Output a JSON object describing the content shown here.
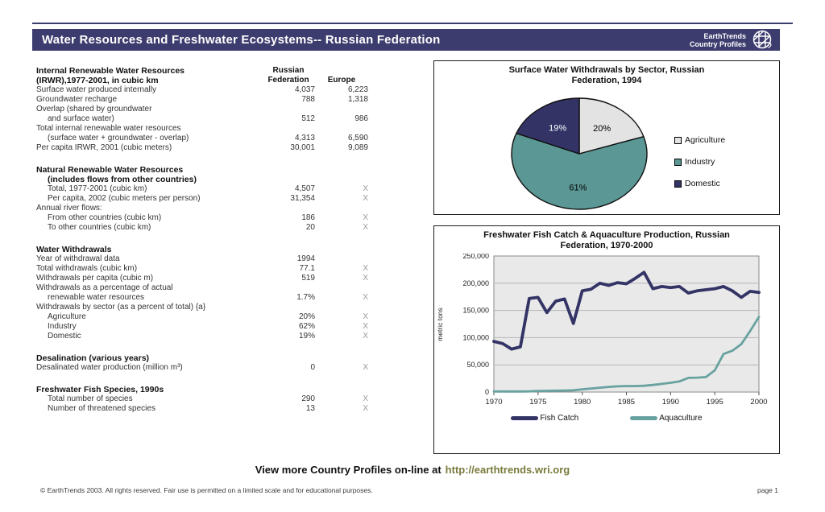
{
  "header": {
    "title": "Water Resources and Freshwater Ecosystems-- Russian Federation",
    "logo_line1": "EarthTrends",
    "logo_line2": "Country Profiles"
  },
  "table": {
    "columns": {
      "col1_line1": "Russian",
      "col1_line2": "Federation",
      "col2": "Europe"
    },
    "sections": [
      {
        "header_lines": [
          "Internal Renewable Water Resources",
          "(IRWR),1977-2001, in cubic km"
        ],
        "show_column_headers": true,
        "rows": [
          {
            "label": "Surface water produced internally",
            "indent": 0,
            "rf": "4,037",
            "eu": "6,223"
          },
          {
            "label": "Groundwater recharge",
            "indent": 0,
            "rf": "788",
            "eu": "1,318"
          },
          {
            "label": "Overlap (shared by groundwater",
            "indent": 0,
            "rf": "",
            "eu": ""
          },
          {
            "label": "and surface water)",
            "indent": 1,
            "rf": "512",
            "eu": "986"
          },
          {
            "label": "Total internal renewable water resources",
            "indent": 0,
            "rf": "",
            "eu": ""
          },
          {
            "label": "(surface water + groundwater - overlap)",
            "indent": 1,
            "rf": "4,313",
            "eu": "6,590"
          },
          {
            "label": "Per capita IRWR, 2001 (cubic meters)",
            "indent": 0,
            "rf": "30,001",
            "eu": "9,089"
          }
        ]
      },
      {
        "header_lines": [
          "Natural Renewable Water Resources",
          "(includes flows from other countries)"
        ],
        "header_indent_second": true,
        "rows": [
          {
            "label": "Total, 1977-2001 (cubic km)",
            "indent": 1,
            "rf": "4,507",
            "eu": "X"
          },
          {
            "label": "Per capita, 2002 (cubic meters per person)",
            "indent": 1,
            "rf": "31,354",
            "eu": "X"
          },
          {
            "label": "Annual river flows:",
            "indent": 0,
            "rf": "",
            "eu": ""
          },
          {
            "label": "From other countries (cubic km)",
            "indent": 1,
            "rf": "186",
            "eu": "X"
          },
          {
            "label": "To other countries (cubic km)",
            "indent": 1,
            "rf": "20",
            "eu": "X"
          }
        ]
      },
      {
        "header_lines": [
          "Water Withdrawals"
        ],
        "rows": [
          {
            "label": "Year of withdrawal data",
            "indent": 0,
            "rf": "1994",
            "eu": ""
          },
          {
            "label": "Total withdrawals (cubic km)",
            "indent": 0,
            "rf": "77.1",
            "eu": "X"
          },
          {
            "label": "Withdrawals per capita (cubic m)",
            "indent": 0,
            "rf": "519",
            "eu": "X"
          },
          {
            "label": "Withdrawals as a percentage of actual",
            "indent": 0,
            "rf": "",
            "eu": ""
          },
          {
            "label": "renewable water resources",
            "indent": 1,
            "rf": "1.7%",
            "eu": "X"
          },
          {
            "label": "Withdrawals by sector (as a percent of total) {a}",
            "indent": 0,
            "rf": "",
            "eu": ""
          },
          {
            "label": "Agriculture",
            "indent": 1,
            "rf": "20%",
            "eu": "X"
          },
          {
            "label": "Industry",
            "indent": 1,
            "rf": "62%",
            "eu": "X"
          },
          {
            "label": "Domestic",
            "indent": 1,
            "rf": "19%",
            "eu": "X"
          }
        ]
      },
      {
        "header_lines": [
          "Desalination (various years)"
        ],
        "rows": [
          {
            "label": "Desalinated water production (million m³)",
            "indent": 0,
            "rf": "0",
            "eu": "X"
          }
        ]
      },
      {
        "header_lines": [
          "Freshwater Fish Species, 1990s"
        ],
        "rows": [
          {
            "label": "Total number of species",
            "indent": 1,
            "rf": "290",
            "eu": "X"
          },
          {
            "label": "Number of threatened species",
            "indent": 1,
            "rf": "13",
            "eu": "X"
          }
        ]
      }
    ]
  },
  "chart_data": [
    {
      "type": "pie",
      "title": "Surface Water Withdrawals by Sector, Russian Federation, 1994",
      "title_lines": [
        "Surface Water Withdrawals by Sector, Russian",
        "Federation, 1994"
      ],
      "labels": [
        "Agriculture",
        "Industry",
        "Domestic"
      ],
      "values": [
        20,
        61,
        19
      ],
      "slice_labels": [
        "20%",
        "61%",
        "19%"
      ],
      "colors": [
        "#E3E3E3",
        "#5B9895",
        "#333366"
      ],
      "label_colors": [
        "#000000",
        "#000000",
        "#FFFFFF"
      ],
      "legend_position": "right",
      "start_angle": "12 o'clock, clockwise"
    },
    {
      "type": "line",
      "title": "Freshwater Fish Catch & Aquaculture Production, Russian Federation, 1970-2000",
      "title_lines": [
        "Freshwater Fish Catch & Aquaculture Production, Russian",
        "Federation, 1970-2000"
      ],
      "xlabel": "",
      "ylabel": "metric tons",
      "ylim": [
        0,
        250000
      ],
      "ytick_labels": [
        "0",
        "50,000",
        "100,000",
        "150,000",
        "200,000",
        "250,000"
      ],
      "x_range": [
        1970,
        2000
      ],
      "xticks": [
        1970,
        1975,
        1980,
        1985,
        1990,
        1995,
        2000
      ],
      "grid": true,
      "plot_bg": "#E9E9E9",
      "legend_position": "bottom",
      "years": [
        1970,
        1971,
        1972,
        1973,
        1974,
        1975,
        1976,
        1977,
        1978,
        1979,
        1980,
        1981,
        1982,
        1983,
        1984,
        1985,
        1986,
        1987,
        1988,
        1989,
        1990,
        1991,
        1992,
        1993,
        1994,
        1995,
        1996,
        1997,
        1998,
        1999,
        2000
      ],
      "series": [
        {
          "name": "Fish Catch",
          "color": "#333366",
          "width": 3.8,
          "values": [
            93000,
            89000,
            79000,
            83000,
            172000,
            174000,
            146000,
            167000,
            171000,
            126000,
            186000,
            189000,
            200000,
            196000,
            201000,
            199000,
            209000,
            220000,
            190000,
            194000,
            192000,
            194000,
            182000,
            186000,
            188000,
            190000,
            194000,
            186000,
            174000,
            185000,
            183000
          ]
        },
        {
          "name": "Aquaculture",
          "color": "#68A2A0",
          "width": 2.8,
          "values": [
            1000,
            1000,
            1000,
            1000,
            1200,
            2000,
            2200,
            2500,
            2800,
            3200,
            5000,
            6500,
            8000,
            9500,
            10500,
            11000,
            11000,
            11500,
            13000,
            15000,
            17000,
            19500,
            26000,
            26500,
            27500,
            40000,
            70000,
            76000,
            88000,
            112000,
            138000
          ]
        }
      ]
    }
  ],
  "footer": {
    "view_more_text": "View more Country Profiles on-line at",
    "url": "http://earthtrends.wri.org",
    "copyright": "© EarthTrends 2003.  All rights reserved.  Fair use is permitted on a limited scale and for educational purposes.",
    "page_number": "page 1"
  },
  "colors": {
    "header_navy": "#3C3C6E",
    "navy": "#333366",
    "teal": "#5B9895",
    "pie_gray": "#E3E3E3",
    "url_olive": "#7A7A3D"
  }
}
